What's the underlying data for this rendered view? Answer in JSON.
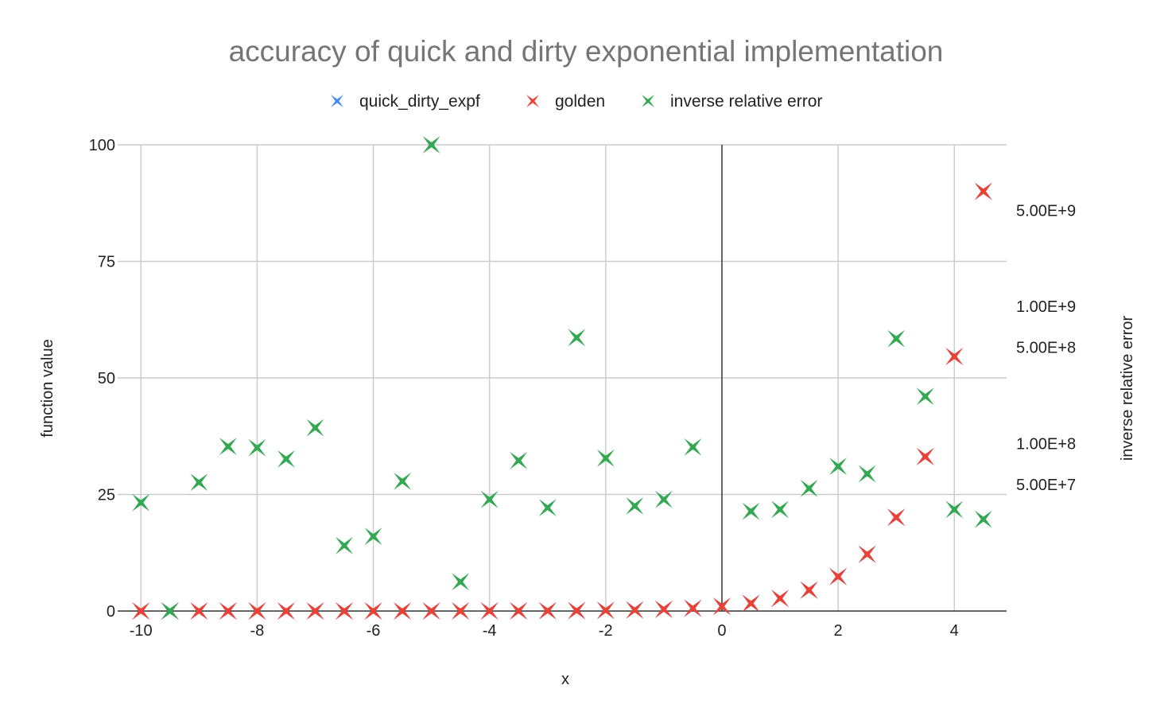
{
  "chart_data": {
    "type": "scatter",
    "title": "accuracy of quick and dirty exponential implementation",
    "xlabel": "x",
    "ylabel": "function value",
    "y2label": "inverse relative error",
    "xlim": [
      -10.4,
      4.9
    ],
    "ylim": [
      0,
      100
    ],
    "y2_scale": "log",
    "y2lim": [
      6000000,
      15000000000
    ],
    "xticks": [
      -10,
      -8,
      -6,
      -4,
      -2,
      0,
      2,
      4
    ],
    "yticks": [
      0,
      25,
      50,
      75,
      100
    ],
    "y2ticks": [
      {
        "value": 50000000,
        "label": "5.00E+7"
      },
      {
        "value": 100000000,
        "label": "1.00E+8"
      },
      {
        "value": 500000000,
        "label": "5.00E+8"
      },
      {
        "value": 1000000000,
        "label": "1.00E+9"
      },
      {
        "value": 5000000000,
        "label": "5.00E+9"
      }
    ],
    "grid": true,
    "legend_position": "top",
    "series": [
      {
        "name": "quick_dirty_expf",
        "color": "#4285f4",
        "axis": "left",
        "x": [
          -10,
          -9.5,
          -9,
          -8.5,
          -8,
          -7.5,
          -7,
          -6.5,
          -6,
          -5.5,
          -5,
          -4.5,
          -4,
          -3.5,
          -3,
          -2.5,
          -2,
          -1.5,
          -1,
          -0.5,
          0,
          0.5,
          1,
          1.5,
          2,
          2.5,
          3,
          3.5,
          4,
          4.5
        ],
        "y": [
          4.54e-05,
          7.49e-05,
          0.000123,
          0.000203,
          0.000335,
          0.000553,
          0.000912,
          0.0015,
          0.00248,
          0.00409,
          0.00674,
          0.0111,
          0.0183,
          0.0302,
          0.0498,
          0.0821,
          0.135,
          0.223,
          0.368,
          0.607,
          1,
          1.649,
          2.718,
          4.482,
          7.389,
          12.18,
          20.09,
          33.12,
          54.6,
          90.02
        ]
      },
      {
        "name": "golden",
        "color": "#ea4335",
        "axis": "left",
        "x": [
          -10,
          -9.5,
          -9,
          -8.5,
          -8,
          -7.5,
          -7,
          -6.5,
          -6,
          -5.5,
          -5,
          -4.5,
          -4,
          -3.5,
          -3,
          -2.5,
          -2,
          -1.5,
          -1,
          -0.5,
          0,
          0.5,
          1,
          1.5,
          2,
          2.5,
          3,
          3.5,
          4,
          4.5
        ],
        "y": [
          4.54e-05,
          7.49e-05,
          0.000123,
          0.000203,
          0.000335,
          0.000553,
          0.000912,
          0.0015,
          0.00248,
          0.00409,
          0.00674,
          0.0111,
          0.0183,
          0.0302,
          0.0498,
          0.0821,
          0.135,
          0.223,
          0.368,
          0.607,
          1,
          1.649,
          2.718,
          4.482,
          7.389,
          12.18,
          20.09,
          33.12,
          54.6,
          90.02
        ]
      },
      {
        "name": "inverse relative error",
        "color": "#34a853",
        "axis": "right",
        "x": [
          -10,
          -9.5,
          -9,
          -8.5,
          -8,
          -7.5,
          -7,
          -6.5,
          -6,
          -5.5,
          -5,
          -4.5,
          -4,
          -3.5,
          -3,
          -2.5,
          -2,
          -1.5,
          -1,
          -0.5,
          0.5,
          1,
          1.5,
          2,
          2.5,
          3,
          3.5,
          4,
          4.5
        ],
        "y": [
          37000000,
          6000000,
          52000000,
          95000000,
          93000000,
          77000000,
          130000000,
          18000000,
          21000000,
          53000000,
          15000000000,
          9800000,
          39000000,
          75000000,
          34000000,
          590000000,
          78000000,
          35000000,
          39000000,
          94000000,
          32000000,
          33000000,
          47000000,
          68000000,
          60000000,
          580000000,
          220000000,
          33000000,
          28000000
        ]
      }
    ]
  }
}
